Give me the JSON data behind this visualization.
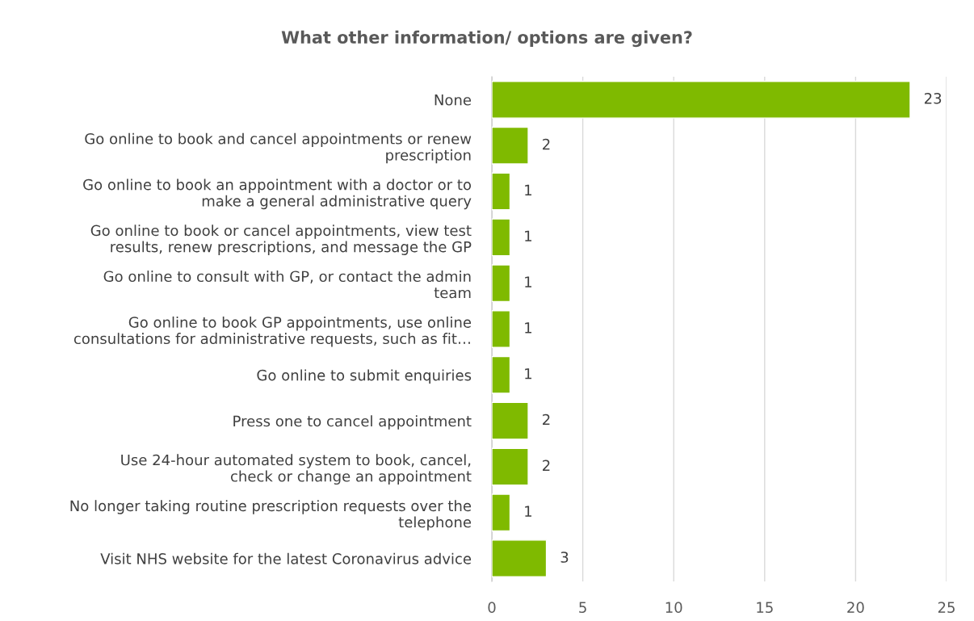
{
  "chart_data": {
    "type": "bar",
    "orientation": "horizontal",
    "title": "What other information/ options are given?",
    "categories": [
      "None",
      "Go online to book and cancel appointments or renew\nprescription",
      "Go online to book an appointment with a doctor or to\nmake a general administrative query",
      "Go online to book or cancel appointments, view test\nresults, renew prescriptions, and message the GP",
      "Go online to consult with GP, or contact the admin\nteam",
      "Go online to book GP appointments, use online\nconsultations for administrative requests, such as fit…",
      "Go online to submit enquiries",
      "Press one to cancel appointment",
      "Use 24-hour automated system to book, cancel,\ncheck or change an appointment",
      "No longer taking routine prescription requests over the\ntelephone",
      "Visit NHS website for the latest Coronavirus advice"
    ],
    "values": [
      23,
      2,
      1,
      1,
      1,
      1,
      1,
      2,
      2,
      1,
      3
    ],
    "color": "#7fba00",
    "xlim": [
      0,
      25
    ],
    "xticks": [
      0,
      5,
      10,
      15,
      20,
      25
    ],
    "grid": "x",
    "data_labels": true
  }
}
